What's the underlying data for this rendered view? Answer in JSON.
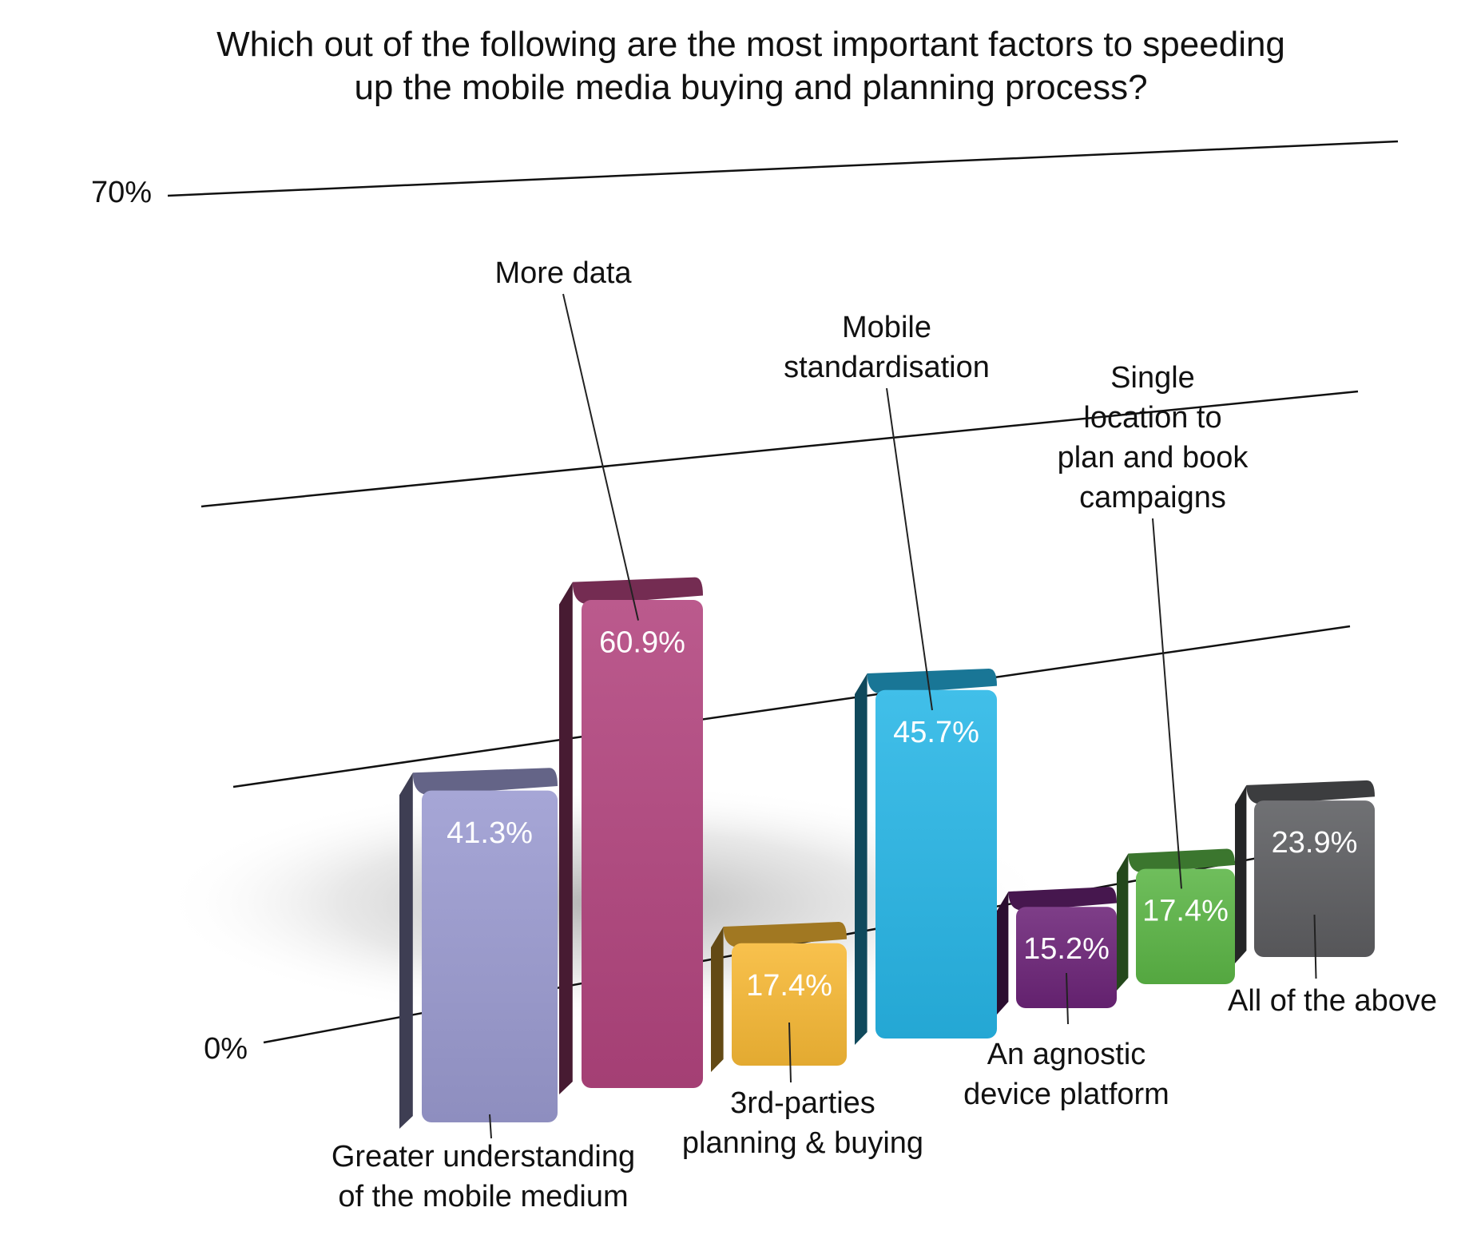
{
  "chart_data": {
    "type": "bar",
    "title": [
      "Which out of the following are the most important factors to speeding",
      "up the mobile media buying and planning process?"
    ],
    "y_ticks": [
      "70%",
      "0%"
    ],
    "ylim": [
      0,
      70
    ],
    "grid": true,
    "categories": [
      "Greater understanding of the mobile medium",
      "More data",
      "3rd-parties planning & buying",
      "Mobile standardisation",
      "An agnostic device platform",
      "Single location to plan and book campaigns",
      "All of the above"
    ],
    "category_label_lines": [
      [
        "Greater understanding",
        "of the mobile medium"
      ],
      [
        "More data"
      ],
      [
        "3rd-parties",
        "planning & buying"
      ],
      [
        "Mobile",
        "standardisation"
      ],
      [
        "An agnostic",
        "device platform"
      ],
      [
        "Single",
        "location to",
        "plan and book",
        "campaigns"
      ],
      [
        "All of the above"
      ]
    ],
    "values": [
      41.3,
      60.9,
      17.4,
      45.7,
      15.2,
      17.4,
      23.9
    ],
    "value_labels": [
      "41.3%",
      "60.9%",
      "17.4%",
      "45.7%",
      "15.2%",
      "17.4%",
      "23.9%"
    ],
    "colors": [
      "#9a9ad0",
      "#b2447e",
      "#f7b935",
      "#27b6e6",
      "#6c2478",
      "#5bb546",
      "#5d5e61"
    ]
  }
}
